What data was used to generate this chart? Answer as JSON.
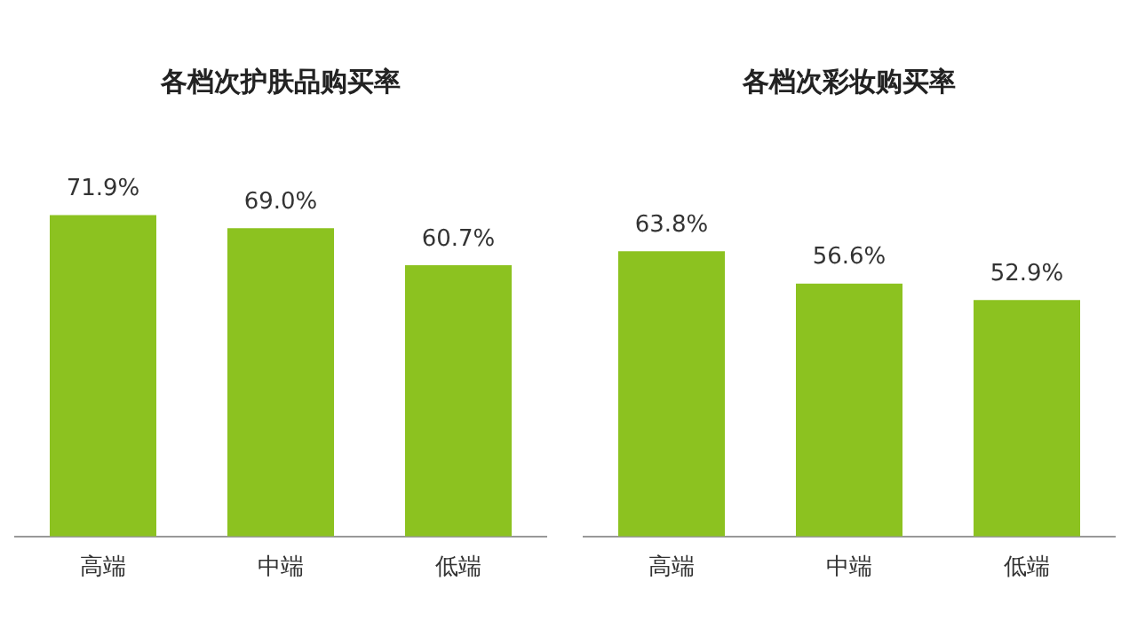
{
  "chart_data": [
    {
      "type": "bar",
      "title": "各档次护肤品购买率",
      "categories": [
        "高端",
        "中端",
        "低端"
      ],
      "values": [
        71.9,
        69.0,
        60.7
      ],
      "value_labels": [
        "71.9%",
        "69.0%",
        "60.7%"
      ],
      "color": "#8cc220",
      "legend": false,
      "grid": false,
      "tick_labels": "x"
    },
    {
      "type": "bar",
      "title": "各档次彩妆购买率",
      "categories": [
        "高端",
        "中端",
        "低端"
      ],
      "values": [
        63.8,
        56.6,
        52.9
      ],
      "value_labels": [
        "63.8%",
        "56.6%",
        "52.9%"
      ],
      "color": "#8cc220",
      "legend": false,
      "grid": false,
      "tick_labels": "x"
    }
  ]
}
